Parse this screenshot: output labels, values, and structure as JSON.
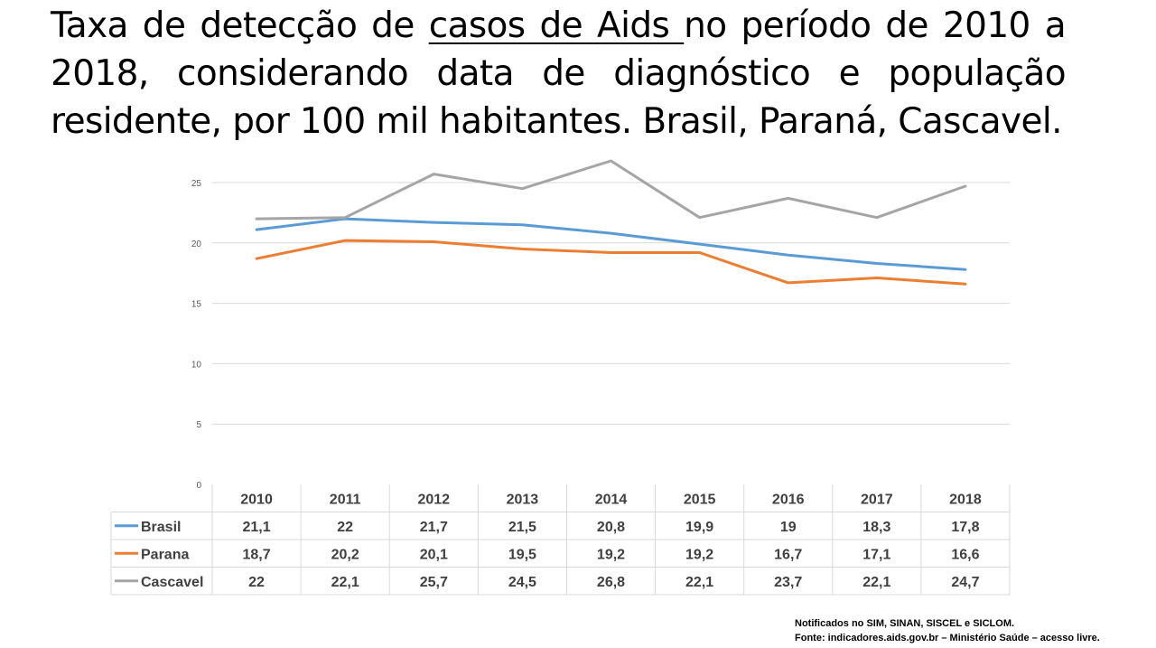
{
  "title": {
    "part1": "Taxa de detecção de ",
    "underlined": "casos de Aids ",
    "part2": "no período de 2010 a 2018, considerando data de diagnóstico e população residente, por 100 mil habitantes. Brasil, Paraná, Cascavel."
  },
  "footnote": {
    "line1": "Notificados no SIM, SINAN, SISCEL e SICLOM.",
    "line2": "Fonte: indicadores.aids.gov.br – Ministério Saúde – acesso livre."
  },
  "chart_data": {
    "type": "line",
    "categories": [
      "2010",
      "2011",
      "2012",
      "2013",
      "2014",
      "2015",
      "2016",
      "2017",
      "2018"
    ],
    "series": [
      {
        "name": "Brasil",
        "color": "#5b9bd5",
        "values": [
          21.1,
          22,
          21.7,
          21.5,
          20.8,
          19.9,
          19,
          18.3,
          17.8
        ],
        "labels": [
          "21,1",
          "22",
          "21,7",
          "21,5",
          "20,8",
          "19,9",
          "19",
          "18,3",
          "17,8"
        ]
      },
      {
        "name": "Parana",
        "color": "#ed7d31",
        "values": [
          18.7,
          20.2,
          20.1,
          19.5,
          19.2,
          19.2,
          16.7,
          17.1,
          16.6
        ],
        "labels": [
          "18,7",
          "20,2",
          "20,1",
          "19,5",
          "19,2",
          "19,2",
          "16,7",
          "17,1",
          "16,6"
        ]
      },
      {
        "name": "Cascavel",
        "color": "#a5a5a5",
        "values": [
          22,
          22.1,
          25.7,
          24.5,
          26.8,
          22.1,
          23.7,
          22.1,
          24.7
        ],
        "labels": [
          "22",
          "22,1",
          "25,7",
          "24,5",
          "26,8",
          "22,1",
          "23,7",
          "22,1",
          "24,7"
        ]
      }
    ],
    "yticks": [
      "0",
      "5",
      "10",
      "15",
      "20",
      "25"
    ],
    "ylim": [
      0,
      25
    ],
    "grid": true,
    "legend": "data-table below chart"
  }
}
